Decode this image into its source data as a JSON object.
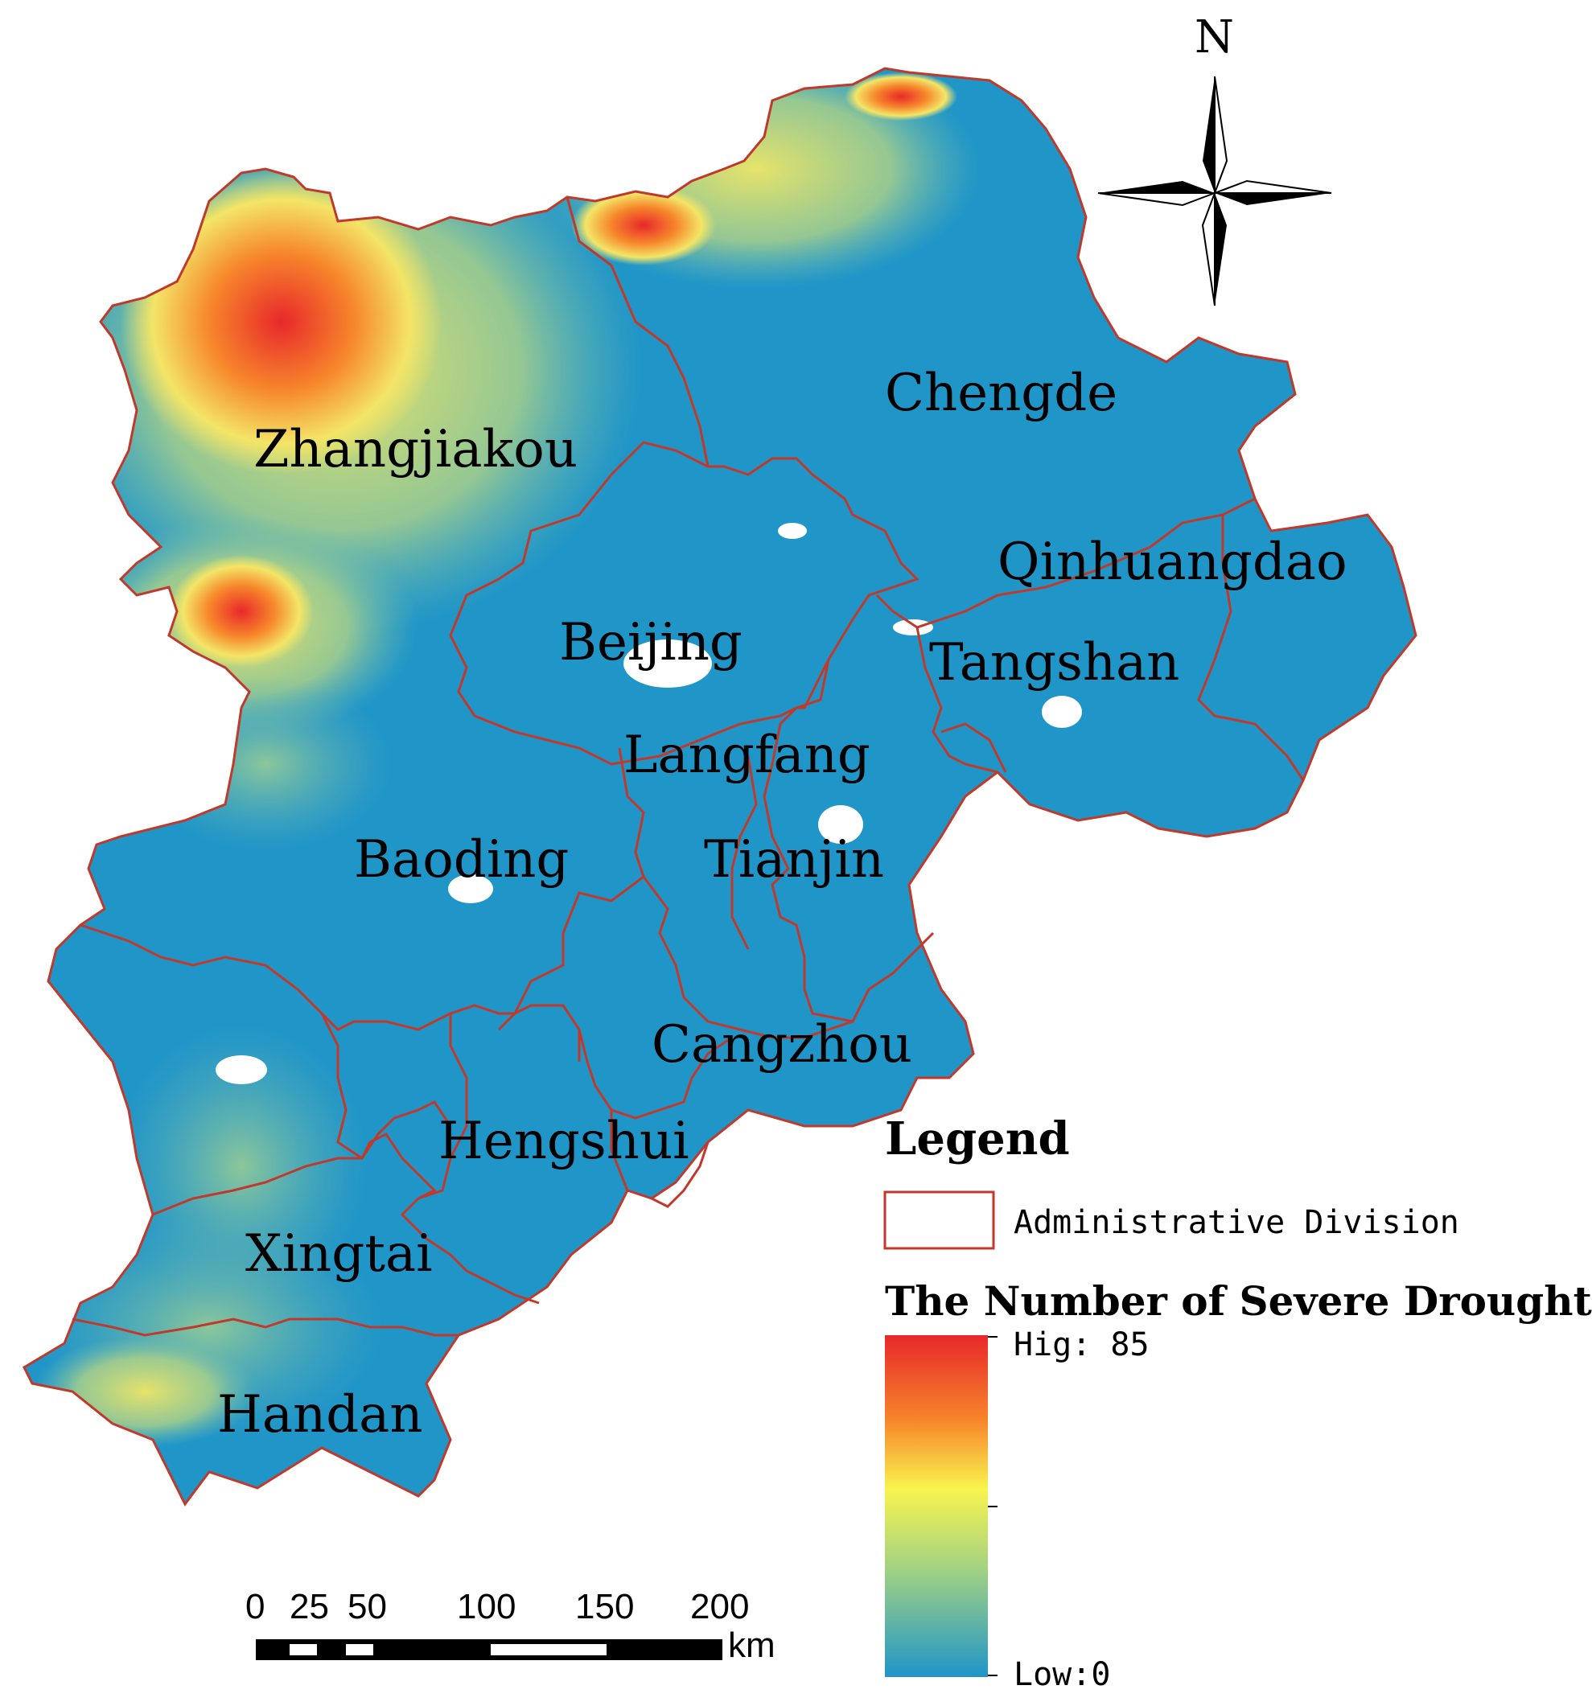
{
  "map": {
    "cities": [
      {
        "id": "zhangjiakou",
        "name": "Zhangjiakou"
      },
      {
        "id": "chengde",
        "name": "Chengde"
      },
      {
        "id": "qinhuangdao",
        "name": "Qinhuangdao"
      },
      {
        "id": "beijing",
        "name": "Beijing"
      },
      {
        "id": "tangshan",
        "name": "Tangshan"
      },
      {
        "id": "langfang",
        "name": "Langfang"
      },
      {
        "id": "baoding",
        "name": "Baoding"
      },
      {
        "id": "tianjin",
        "name": "Tianjin"
      },
      {
        "id": "cangzhou",
        "name": "Cangzhou"
      },
      {
        "id": "hengshui",
        "name": "Hengshui"
      },
      {
        "id": "xingtai",
        "name": "Xingtai"
      },
      {
        "id": "handan",
        "name": "Handan"
      }
    ]
  },
  "north_arrow": {
    "label": "N"
  },
  "legend": {
    "title": "Legend",
    "boundary_label": "Administrative Division",
    "boundary_color": "#c0392b",
    "ramp_title": "The Number of Severe Drought",
    "high_label": "Hig: 85",
    "low_label": "Low:0",
    "high_value": 85,
    "low_value": 0,
    "colors": [
      "#e8282b",
      "#f7862b",
      "#f9f44e",
      "#9ccf86",
      "#1f95c8"
    ]
  },
  "scale_bar": {
    "ticks": [
      "0",
      "25",
      "50",
      "100",
      "150",
      "200"
    ],
    "unit": "km"
  }
}
